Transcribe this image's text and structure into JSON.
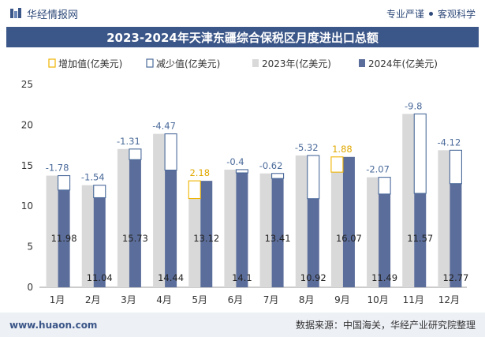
{
  "header": {
    "brand": "华经情报网",
    "tagline_left": "专业严谨",
    "tagline_right": "客观科学"
  },
  "chart_data": {
    "type": "bar",
    "title": "2023-2024年天津东疆综合保税区月度进出口总额",
    "categories": [
      "1月",
      "2月",
      "3月",
      "4月",
      "5月",
      "6月",
      "7月",
      "8月",
      "9月",
      "10月",
      "11月",
      "12月"
    ],
    "series": [
      {
        "name": "2023年(亿美元)",
        "values": [
          13.76,
          12.58,
          17.04,
          18.91,
          10.94,
          14.5,
          14.03,
          16.24,
          14.19,
          13.56,
          21.37,
          16.89
        ]
      },
      {
        "name": "2024年(亿美元)",
        "values": [
          11.98,
          11.04,
          15.73,
          14.44,
          13.12,
          14.1,
          13.41,
          10.92,
          16.07,
          11.49,
          11.57,
          12.77
        ]
      }
    ],
    "diff": [
      -1.78,
      -1.54,
      -1.31,
      -4.47,
      2.18,
      -0.4,
      -0.62,
      -5.32,
      1.88,
      -2.07,
      -9.8,
      -4.12
    ],
    "legend": [
      "增加值(亿美元)",
      "减少值(亿美元)",
      "2023年(亿美元)",
      "2024年(亿美元)"
    ],
    "legend_position": "top",
    "ylim": [
      0,
      25
    ],
    "yticks": [
      0,
      5,
      10,
      15,
      20,
      25
    ],
    "grid": false,
    "colors": {
      "y2023": "#d9d9d9",
      "y2024": "#5b6d9a",
      "increase": "#f0b400",
      "decrease": "#4a6a9a"
    }
  },
  "footer": {
    "url": "www.huaon.com",
    "source": "数据来源：中国海关，华经产业研究院整理"
  }
}
